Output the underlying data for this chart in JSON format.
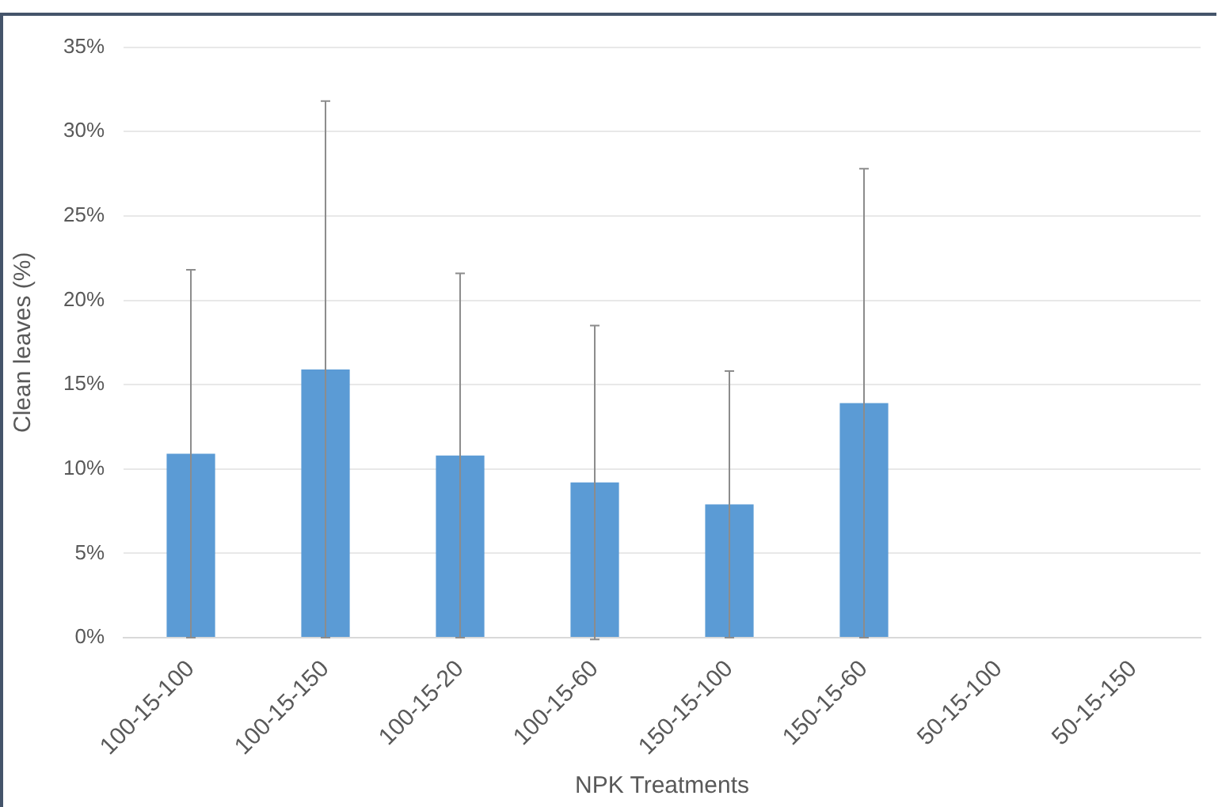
{
  "chart_data": {
    "type": "bar",
    "xlabel": "NPK Treatments",
    "ylabel": "Clean leaves (%)",
    "categories": [
      "100-15-100",
      "100-15-150",
      "100-15-20",
      "100-15-60",
      "150-15-100",
      "150-15-60",
      "50-15-100",
      "50-15-150"
    ],
    "series": [
      {
        "color": "#5b9bd5",
        "values": [
          10.9,
          15.9,
          10.8,
          9.2,
          7.9,
          13.9,
          0,
          0
        ],
        "errors": [
          10.9,
          15.9,
          10.8,
          9.3,
          7.9,
          13.9,
          null,
          null
        ]
      }
    ],
    "ylim": [
      0,
      35
    ],
    "yticks": [
      {
        "value": 0,
        "label": "0%"
      },
      {
        "value": 5,
        "label": "5%"
      },
      {
        "value": 10,
        "label": "10%"
      },
      {
        "value": 15,
        "label": "15%"
      },
      {
        "value": 20,
        "label": "20%"
      },
      {
        "value": 25,
        "label": "25%"
      },
      {
        "value": 30,
        "label": "30%"
      },
      {
        "value": 35,
        "label": "35%"
      }
    ],
    "grid": "y",
    "legend": false
  }
}
